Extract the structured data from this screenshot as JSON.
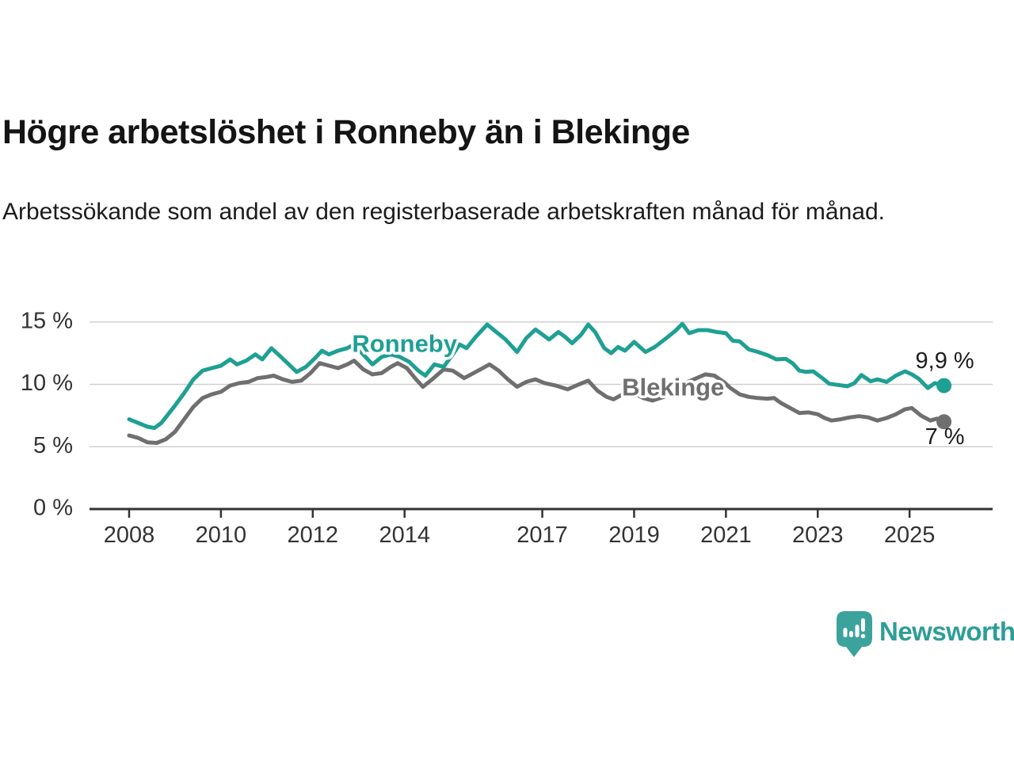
{
  "header": {
    "title": "Högre arbetslöshet i Ronneby än i Blekinge",
    "subtitle": "Arbetssökande som andel av den registerbaserade arbetskraften månad för månad."
  },
  "colors": {
    "accent_teal": "#1EA093",
    "series_gray": "#6F6F6F",
    "grid": "#cfcfcf",
    "axis": "#333333",
    "text_dark": "#1d1d1d",
    "logo_bubble": "#3CA29C",
    "logo_text": "#2D9D97"
  },
  "chart_data": {
    "type": "line",
    "title": "Högre arbetslöshet i Ronneby än i Blekinge",
    "xlabel": "",
    "ylabel": "",
    "ylim": [
      0,
      15.6
    ],
    "xlim": [
      2007.15,
      2026.8
    ],
    "grid": "horizontal-only",
    "legend_position": "inline-labels",
    "y_ticks": [
      {
        "value": 0,
        "label": "0 %"
      },
      {
        "value": 5,
        "label": "5 %"
      },
      {
        "value": 10,
        "label": "10 %"
      },
      {
        "value": 15,
        "label": "15 %"
      }
    ],
    "x_ticks": [
      {
        "value": 2008,
        "label": "2008"
      },
      {
        "value": 2010,
        "label": "2010"
      },
      {
        "value": 2012,
        "label": "2012"
      },
      {
        "value": 2014,
        "label": "2014"
      },
      {
        "value": 2017,
        "label": "2017"
      },
      {
        "value": 2019,
        "label": "2019"
      },
      {
        "value": 2021,
        "label": "2021"
      },
      {
        "value": 2023,
        "label": "2023"
      },
      {
        "value": 2025,
        "label": "2025"
      }
    ],
    "series": [
      {
        "name": "Blekinge",
        "color": "#6F6F6F",
        "label": {
          "text": "Blekinge",
          "x": 2019.85,
          "y": 9.8
        },
        "end_label": {
          "text": "7 %",
          "dy": 28
        },
        "points": [
          [
            2008.0,
            5.9
          ],
          [
            2008.2,
            5.7
          ],
          [
            2008.4,
            5.35
          ],
          [
            2008.6,
            5.3
          ],
          [
            2008.8,
            5.6
          ],
          [
            2009.0,
            6.2
          ],
          [
            2009.2,
            7.2
          ],
          [
            2009.4,
            8.2
          ],
          [
            2009.6,
            8.9
          ],
          [
            2009.8,
            9.2
          ],
          [
            2010.0,
            9.4
          ],
          [
            2010.2,
            9.9
          ],
          [
            2010.4,
            10.1
          ],
          [
            2010.6,
            10.2
          ],
          [
            2010.8,
            10.5
          ],
          [
            2011.0,
            10.6
          ],
          [
            2011.15,
            10.7
          ],
          [
            2011.35,
            10.4
          ],
          [
            2011.55,
            10.2
          ],
          [
            2011.75,
            10.3
          ],
          [
            2011.95,
            10.9
          ],
          [
            2012.15,
            11.7
          ],
          [
            2012.35,
            11.5
          ],
          [
            2012.55,
            11.3
          ],
          [
            2012.75,
            11.6
          ],
          [
            2012.9,
            11.9
          ],
          [
            2013.1,
            11.2
          ],
          [
            2013.3,
            10.8
          ],
          [
            2013.5,
            10.9
          ],
          [
            2013.7,
            11.4
          ],
          [
            2013.85,
            11.7
          ],
          [
            2014.05,
            11.3
          ],
          [
            2014.25,
            10.4
          ],
          [
            2014.4,
            9.8
          ],
          [
            2014.6,
            10.4
          ],
          [
            2014.85,
            11.2
          ],
          [
            2015.05,
            11.1
          ],
          [
            2015.3,
            10.5
          ],
          [
            2015.55,
            11.0
          ],
          [
            2015.85,
            11.6
          ],
          [
            2016.05,
            11.1
          ],
          [
            2016.25,
            10.4
          ],
          [
            2016.45,
            9.8
          ],
          [
            2016.65,
            10.2
          ],
          [
            2016.85,
            10.4
          ],
          [
            2017.05,
            10.1
          ],
          [
            2017.3,
            9.9
          ],
          [
            2017.55,
            9.6
          ],
          [
            2017.8,
            10.0
          ],
          [
            2018.0,
            10.3
          ],
          [
            2018.2,
            9.5
          ],
          [
            2018.4,
            9.0
          ],
          [
            2018.55,
            8.8
          ],
          [
            2018.75,
            9.2
          ],
          [
            2019.0,
            9.3
          ],
          [
            2019.2,
            8.9
          ],
          [
            2019.4,
            8.7
          ],
          [
            2019.65,
            9.0
          ],
          [
            2019.9,
            9.5
          ],
          [
            2020.1,
            10.1
          ],
          [
            2020.3,
            10.4
          ],
          [
            2020.55,
            10.8
          ],
          [
            2020.75,
            10.7
          ],
          [
            2020.95,
            10.2
          ],
          [
            2021.1,
            9.7
          ],
          [
            2021.3,
            9.2
          ],
          [
            2021.5,
            9.0
          ],
          [
            2021.7,
            8.9
          ],
          [
            2021.9,
            8.85
          ],
          [
            2022.05,
            8.9
          ],
          [
            2022.2,
            8.5
          ],
          [
            2022.4,
            8.1
          ],
          [
            2022.6,
            7.7
          ],
          [
            2022.8,
            7.75
          ],
          [
            2023.0,
            7.6
          ],
          [
            2023.15,
            7.3
          ],
          [
            2023.3,
            7.1
          ],
          [
            2023.5,
            7.2
          ],
          [
            2023.7,
            7.35
          ],
          [
            2023.9,
            7.45
          ],
          [
            2024.1,
            7.35
          ],
          [
            2024.3,
            7.1
          ],
          [
            2024.5,
            7.3
          ],
          [
            2024.7,
            7.6
          ],
          [
            2024.9,
            8.0
          ],
          [
            2025.05,
            8.1
          ],
          [
            2025.25,
            7.5
          ],
          [
            2025.45,
            7.1
          ],
          [
            2025.6,
            7.25
          ],
          [
            2025.75,
            7.0
          ]
        ]
      },
      {
        "name": "Ronneby",
        "color": "#1EA093",
        "label": {
          "text": "Ronneby",
          "x": 2014.0,
          "y": 13.3
        },
        "end_label": {
          "text": "9,9 %",
          "dy": -22
        },
        "points": [
          [
            2008.0,
            7.2
          ],
          [
            2008.2,
            6.9
          ],
          [
            2008.4,
            6.6
          ],
          [
            2008.55,
            6.5
          ],
          [
            2008.7,
            6.9
          ],
          [
            2008.85,
            7.6
          ],
          [
            2009.0,
            8.3
          ],
          [
            2009.2,
            9.3
          ],
          [
            2009.4,
            10.4
          ],
          [
            2009.6,
            11.1
          ],
          [
            2009.8,
            11.3
          ],
          [
            2010.0,
            11.5
          ],
          [
            2010.2,
            12.0
          ],
          [
            2010.35,
            11.6
          ],
          [
            2010.55,
            11.9
          ],
          [
            2010.75,
            12.4
          ],
          [
            2010.9,
            12.0
          ],
          [
            2011.1,
            12.9
          ],
          [
            2011.25,
            12.4
          ],
          [
            2011.45,
            11.7
          ],
          [
            2011.65,
            11.0
          ],
          [
            2011.85,
            11.4
          ],
          [
            2012.05,
            12.1
          ],
          [
            2012.2,
            12.7
          ],
          [
            2012.35,
            12.4
          ],
          [
            2012.55,
            12.7
          ],
          [
            2012.75,
            12.9
          ],
          [
            2012.9,
            13.2
          ],
          [
            2013.1,
            12.4
          ],
          [
            2013.3,
            11.6
          ],
          [
            2013.5,
            12.2
          ],
          [
            2013.7,
            12.4
          ],
          [
            2013.9,
            12.2
          ],
          [
            2014.1,
            11.8
          ],
          [
            2014.3,
            11.1
          ],
          [
            2014.45,
            10.7
          ],
          [
            2014.65,
            11.6
          ],
          [
            2014.85,
            11.4
          ],
          [
            2015.05,
            12.4
          ],
          [
            2015.2,
            13.2
          ],
          [
            2015.35,
            12.9
          ],
          [
            2015.55,
            13.8
          ],
          [
            2015.8,
            14.8
          ],
          [
            2016.0,
            14.2
          ],
          [
            2016.2,
            13.6
          ],
          [
            2016.45,
            12.6
          ],
          [
            2016.65,
            13.7
          ],
          [
            2016.85,
            14.4
          ],
          [
            2017.0,
            14.0
          ],
          [
            2017.15,
            13.6
          ],
          [
            2017.35,
            14.2
          ],
          [
            2017.5,
            13.8
          ],
          [
            2017.65,
            13.3
          ],
          [
            2017.85,
            14.0
          ],
          [
            2018.0,
            14.8
          ],
          [
            2018.15,
            14.2
          ],
          [
            2018.35,
            12.9
          ],
          [
            2018.5,
            12.5
          ],
          [
            2018.65,
            13.0
          ],
          [
            2018.8,
            12.7
          ],
          [
            2019.0,
            13.4
          ],
          [
            2019.25,
            12.6
          ],
          [
            2019.45,
            13.0
          ],
          [
            2019.7,
            13.7
          ],
          [
            2019.9,
            14.3
          ],
          [
            2020.05,
            14.85
          ],
          [
            2020.2,
            14.1
          ],
          [
            2020.4,
            14.35
          ],
          [
            2020.6,
            14.35
          ],
          [
            2020.8,
            14.2
          ],
          [
            2021.0,
            14.1
          ],
          [
            2021.15,
            13.5
          ],
          [
            2021.3,
            13.45
          ],
          [
            2021.5,
            12.8
          ],
          [
            2021.7,
            12.6
          ],
          [
            2021.9,
            12.35
          ],
          [
            2022.1,
            12.0
          ],
          [
            2022.3,
            12.05
          ],
          [
            2022.45,
            11.7
          ],
          [
            2022.6,
            11.1
          ],
          [
            2022.75,
            11.0
          ],
          [
            2022.9,
            11.05
          ],
          [
            2023.1,
            10.5
          ],
          [
            2023.25,
            10.05
          ],
          [
            2023.45,
            9.95
          ],
          [
            2023.65,
            9.85
          ],
          [
            2023.8,
            10.1
          ],
          [
            2023.95,
            10.75
          ],
          [
            2024.15,
            10.25
          ],
          [
            2024.3,
            10.4
          ],
          [
            2024.5,
            10.2
          ],
          [
            2024.7,
            10.7
          ],
          [
            2024.9,
            11.05
          ],
          [
            2025.05,
            10.8
          ],
          [
            2025.2,
            10.45
          ],
          [
            2025.4,
            9.7
          ],
          [
            2025.55,
            10.1
          ],
          [
            2025.75,
            9.9
          ]
        ]
      }
    ]
  },
  "footer": {
    "logo_text": "Newsworthy"
  }
}
